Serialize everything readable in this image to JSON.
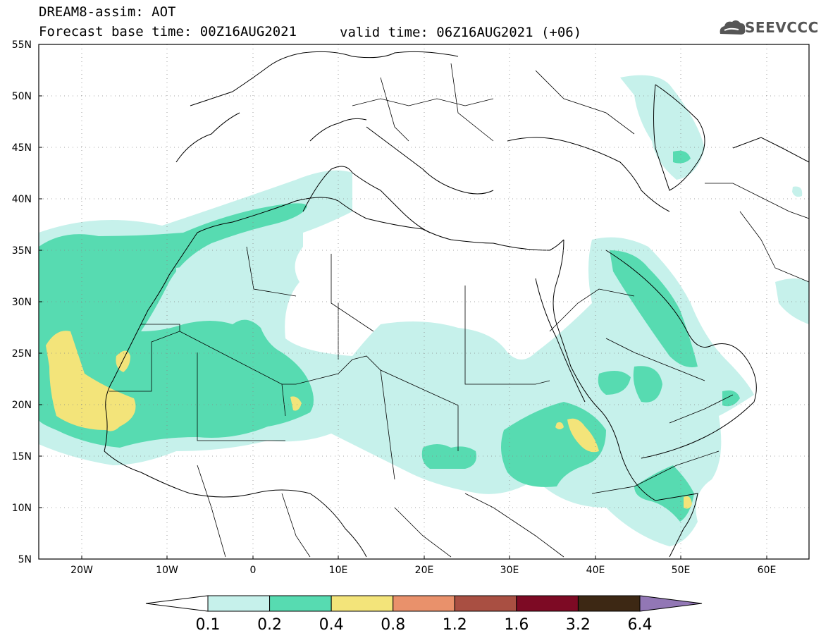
{
  "title": {
    "line1": "DREAM8-assim: AOT",
    "line2": "Forecast base time: 00Z16AUG2021",
    "valid_time": "valid time: 06Z16AUG2021 (+06)"
  },
  "logo": {
    "text": "SEEVCCC",
    "icon": "cloud-icon"
  },
  "map": {
    "projection": "lat-lon",
    "lon_range": [
      -25,
      65
    ],
    "lat_range": [
      5,
      55
    ],
    "lat_labels": [
      "55N",
      "50N",
      "45N",
      "40N",
      "35N",
      "30N",
      "25N",
      "20N",
      "15N",
      "10N",
      "5N"
    ],
    "lon_labels": [
      "20W",
      "10W",
      "0",
      "10E",
      "20E",
      "30E",
      "40E",
      "50E",
      "60E"
    ],
    "grid": "dotted"
  },
  "colorbar": {
    "levels": [
      "0.1",
      "0.2",
      "0.4",
      "0.8",
      "1.2",
      "1.6",
      "3.2",
      "6.4"
    ],
    "colors": [
      "#ffffff",
      "#c6f1eb",
      "#57dbb1",
      "#f3e47a",
      "#e9916b",
      "#a94f42",
      "#7d0a24",
      "#3d2814",
      "#9277b5"
    ]
  },
  "colors": {
    "aot_0_1": "#c6f1eb",
    "aot_0_2": "#57dbb1",
    "aot_0_4": "#f3e47a"
  }
}
